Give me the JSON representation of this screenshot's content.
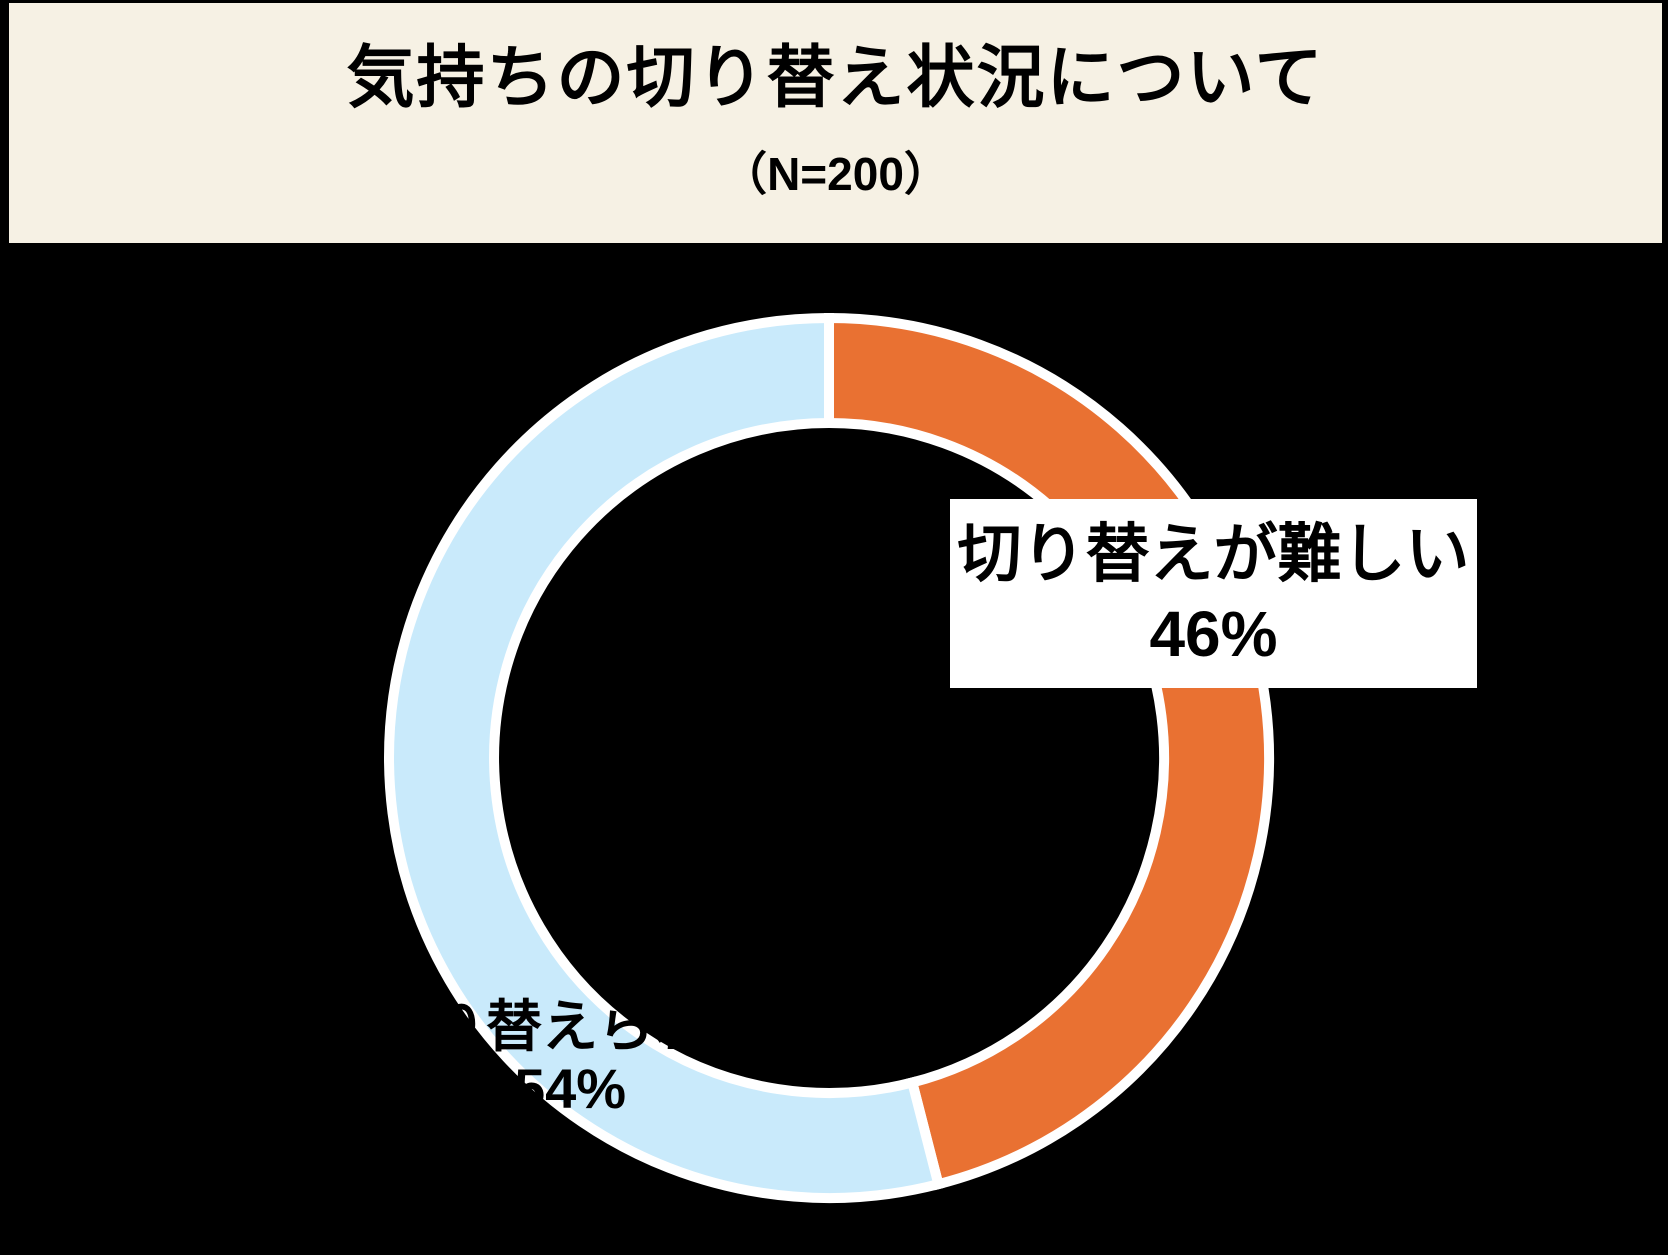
{
  "header": {
    "title": "気持ちの切り替え状況について",
    "subtitle": "（N=200）"
  },
  "chart_data": {
    "type": "pie",
    "subtype": "donut",
    "title": "気持ちの切り替え状況について",
    "sample_label": "（N=200）",
    "n": 200,
    "start_angle_deg": 0,
    "direction": "clockwise",
    "legend": "none",
    "segments": [
      {
        "label": "切り替えが難しい",
        "value_pct": 46,
        "value_label": "46%",
        "color": "#E97132",
        "callout_style": "white box over segment, black text"
      },
      {
        "label": "切り替えられる",
        "value_pct": 54,
        "value_label": "54%",
        "color": "#C9EAFB",
        "callout_style": "black text over segment, no box"
      }
    ]
  },
  "colors": {
    "background": "#000000",
    "header_background": "#F6F1E4",
    "segment_outline": "#FFFFFF",
    "text": "#000000",
    "difficult_segment": "#E97132",
    "able_segment": "#C9EAFB"
  }
}
